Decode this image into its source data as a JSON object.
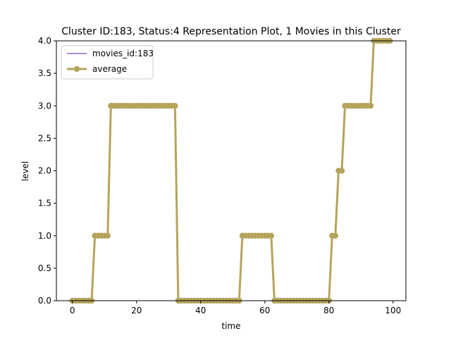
{
  "chart_data": {
    "type": "line",
    "title": "Cluster ID:183, Status:4 Representation Plot, 1 Movies in this Cluster",
    "xlabel": "time",
    "ylabel": "level",
    "xlim": [
      -5,
      104
    ],
    "ylim": [
      0,
      4
    ],
    "x_ticks": [
      0,
      20,
      40,
      60,
      80,
      100
    ],
    "y_ticks": [
      0.0,
      0.5,
      1.0,
      1.5,
      2.0,
      2.5,
      3.0,
      3.5,
      4.0
    ],
    "legend_position": "top-left",
    "grid": false,
    "x": [
      0,
      1,
      2,
      3,
      4,
      5,
      6,
      7,
      8,
      9,
      10,
      11,
      12,
      13,
      14,
      15,
      16,
      17,
      18,
      19,
      20,
      21,
      22,
      23,
      24,
      25,
      26,
      27,
      28,
      29,
      30,
      31,
      32,
      33,
      34,
      35,
      36,
      37,
      38,
      39,
      40,
      41,
      42,
      43,
      44,
      45,
      46,
      47,
      48,
      49,
      50,
      51,
      52,
      53,
      54,
      55,
      56,
      57,
      58,
      59,
      60,
      61,
      62,
      63,
      64,
      65,
      66,
      67,
      68,
      69,
      70,
      71,
      72,
      73,
      74,
      75,
      76,
      77,
      78,
      79,
      80,
      81,
      82,
      83,
      84,
      85,
      86,
      87,
      88,
      89,
      90,
      91,
      92,
      93,
      94,
      95,
      96,
      97,
      98,
      99
    ],
    "series": [
      {
        "name": "movies_id:183",
        "color": "#9467bd",
        "line_width": 1.5,
        "markers": false,
        "values": [
          0,
          0,
          0,
          0,
          0,
          0,
          0,
          1,
          1,
          1,
          1,
          1,
          3,
          3,
          3,
          3,
          3,
          3,
          3,
          3,
          3,
          3,
          3,
          3,
          3,
          3,
          3,
          3,
          3,
          3,
          3,
          3,
          3,
          0,
          0,
          0,
          0,
          0,
          0,
          0,
          0,
          0,
          0,
          0,
          0,
          0,
          0,
          0,
          0,
          0,
          0,
          0,
          0,
          1,
          1,
          1,
          1,
          1,
          1,
          1,
          1,
          1,
          1,
          0,
          0,
          0,
          0,
          0,
          0,
          0,
          0,
          0,
          0,
          0,
          0,
          0,
          0,
          0,
          0,
          0,
          0,
          1,
          1,
          2,
          2,
          3,
          3,
          3,
          3,
          3,
          3,
          3,
          3,
          3,
          4,
          4,
          4,
          4,
          4,
          4
        ]
      },
      {
        "name": "average",
        "color": "#b5a45c",
        "line_width": 3,
        "markers": true,
        "values": [
          0,
          0,
          0,
          0,
          0,
          0,
          0,
          1,
          1,
          1,
          1,
          1,
          3,
          3,
          3,
          3,
          3,
          3,
          3,
          3,
          3,
          3,
          3,
          3,
          3,
          3,
          3,
          3,
          3,
          3,
          3,
          3,
          3,
          0,
          0,
          0,
          0,
          0,
          0,
          0,
          0,
          0,
          0,
          0,
          0,
          0,
          0,
          0,
          0,
          0,
          0,
          0,
          0,
          1,
          1,
          1,
          1,
          1,
          1,
          1,
          1,
          1,
          1,
          0,
          0,
          0,
          0,
          0,
          0,
          0,
          0,
          0,
          0,
          0,
          0,
          0,
          0,
          0,
          0,
          0,
          0,
          1,
          1,
          2,
          2,
          3,
          3,
          3,
          3,
          3,
          3,
          3,
          3,
          3,
          4,
          4,
          4,
          4,
          4,
          4
        ]
      }
    ]
  }
}
